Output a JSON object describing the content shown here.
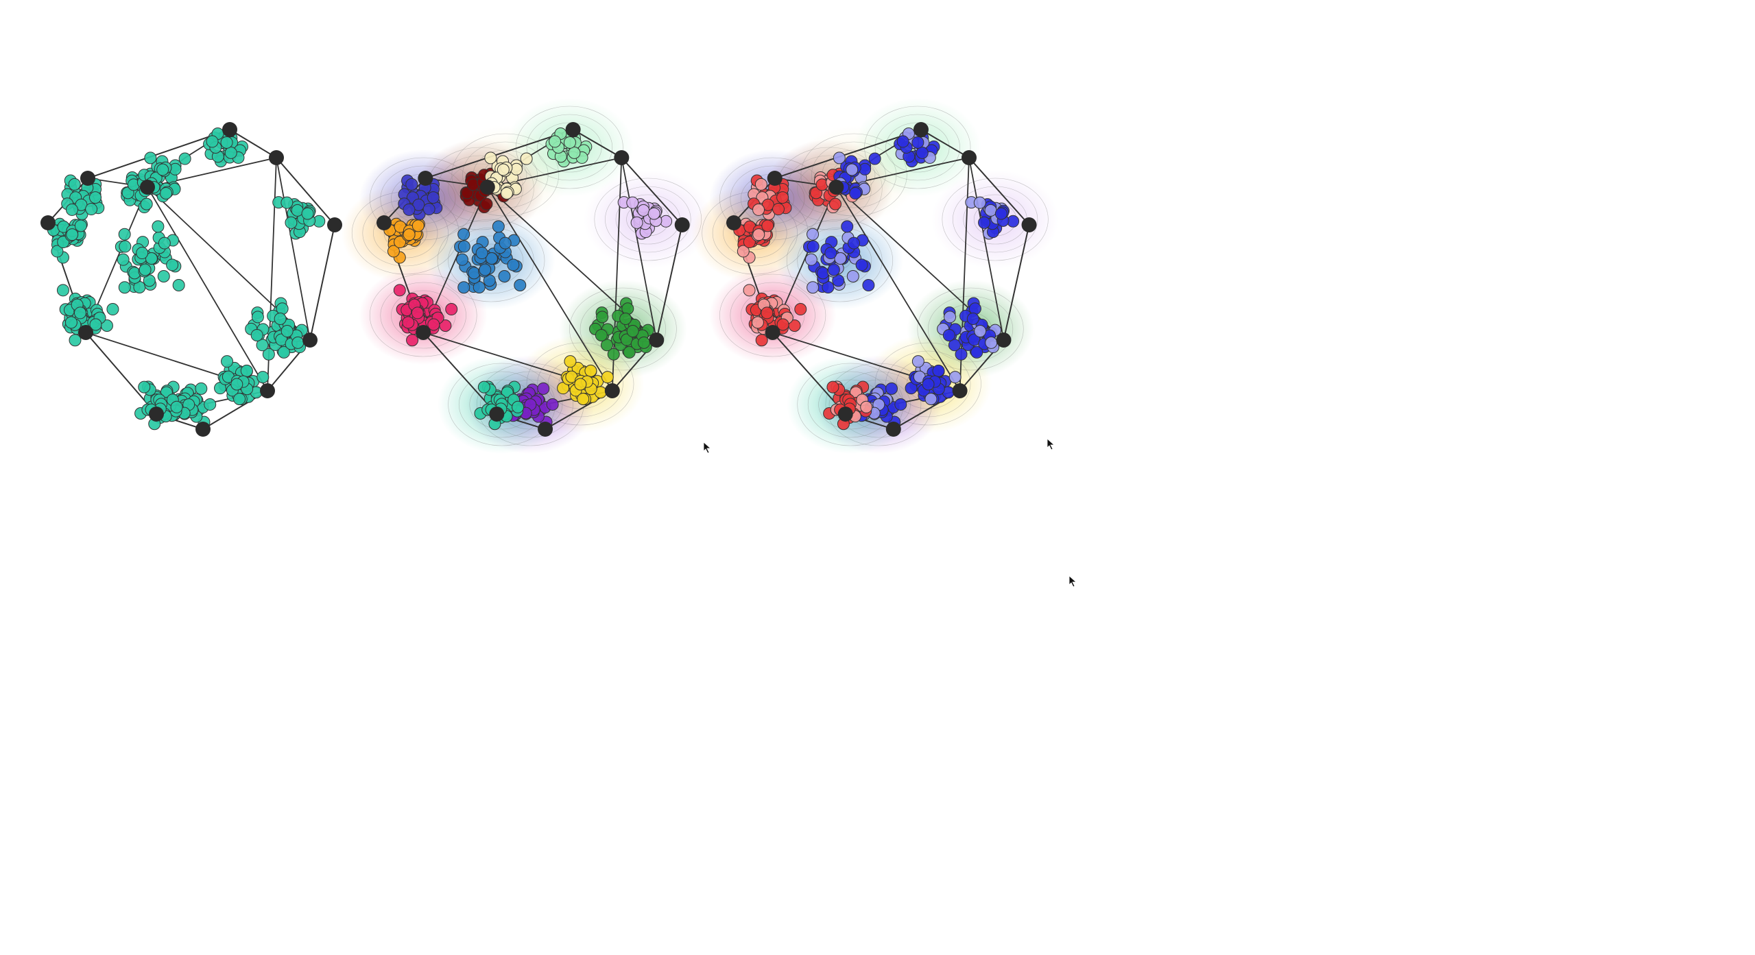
{
  "panels": [
    {
      "id": "plain",
      "point_color": "#2ac9a4",
      "show_density": false,
      "show_class_colors": false
    },
    {
      "id": "clusters",
      "show_density": true,
      "show_class_colors": true,
      "cluster_colors": [
        "#f7a21b",
        "#3b39c7",
        "#7a0a0a",
        "#f6eec2",
        "#8fe8b0",
        "#d9b6f2",
        "#2a7fc4",
        "#e8246a",
        "#2f9e3a",
        "#f2d21e",
        "#7a22c7",
        "#28c9a0"
      ]
    },
    {
      "id": "binary",
      "show_density": true,
      "show_class_colors": true,
      "class_colors": [
        "#e8373a",
        "#2b2fe0"
      ]
    }
  ],
  "colors": {
    "vertex": "#2b2b2b",
    "edge": "#333333",
    "point_stroke": "#333333"
  },
  "cursor_icons": [
    "cursor-arrow-icon",
    "cursor-arrow-icon",
    "cursor-arrow-icon"
  ]
}
